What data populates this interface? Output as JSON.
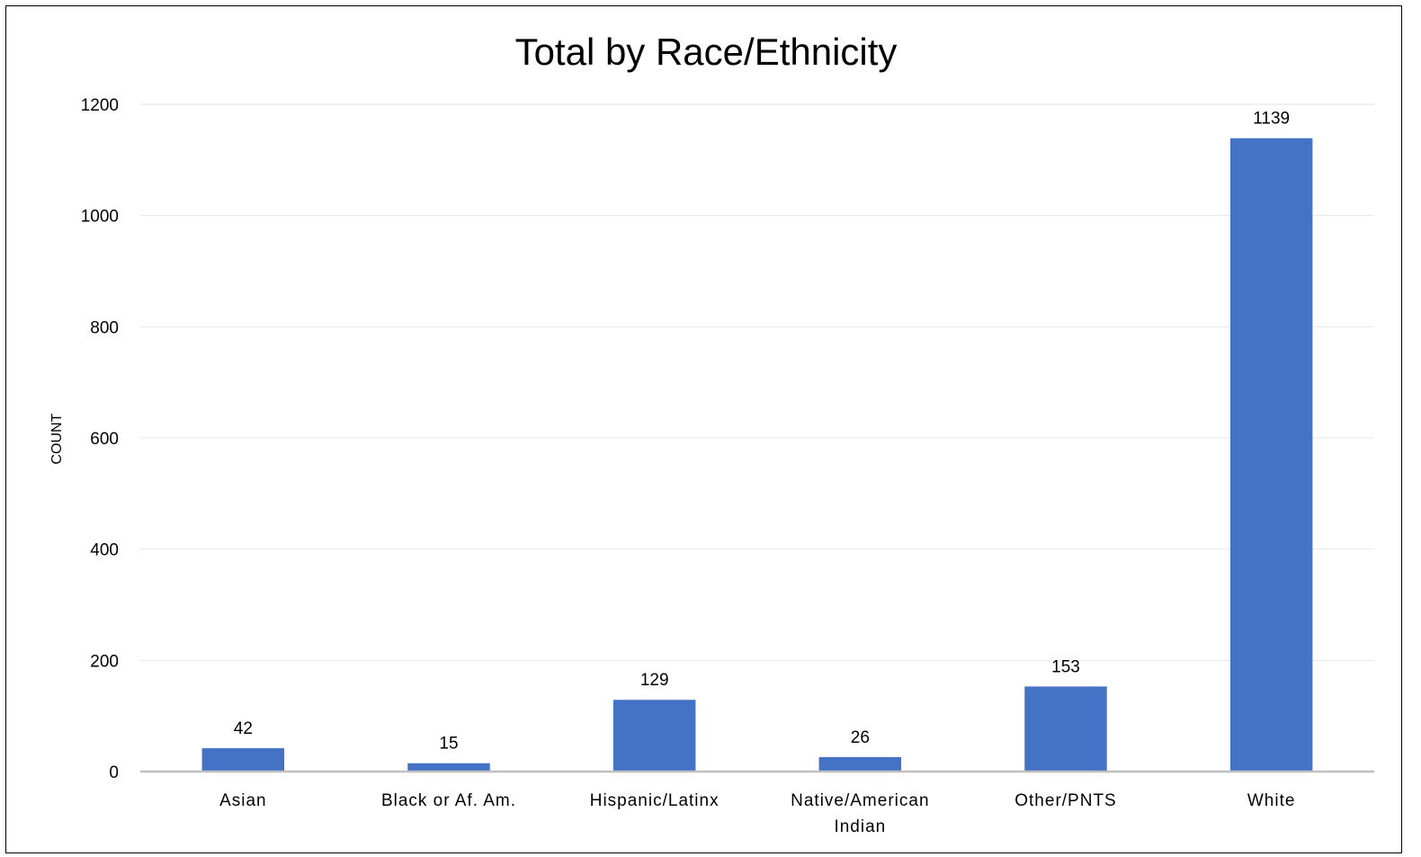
{
  "chart_data": {
    "type": "bar",
    "title": "Total by Race/Ethnicity",
    "xlabel": "",
    "ylabel": "COUNT",
    "categories": [
      [
        "Asian"
      ],
      [
        "Black or Af. Am."
      ],
      [
        "Hispanic/Latinx"
      ],
      [
        "Native/American",
        "Indian"
      ],
      [
        "Other/PNTS"
      ],
      [
        "White"
      ]
    ],
    "values": [
      42,
      15,
      129,
      26,
      153,
      1139
    ],
    "ylim": [
      0,
      1200
    ],
    "yticks": [
      0,
      200,
      400,
      600,
      800,
      1000,
      1200
    ],
    "grid": true,
    "legend": "none",
    "data_labels": true,
    "colors": {
      "bar": "#4472C4",
      "gridline": "#E6E6E6",
      "baseline": "#BFBFBF"
    }
  }
}
